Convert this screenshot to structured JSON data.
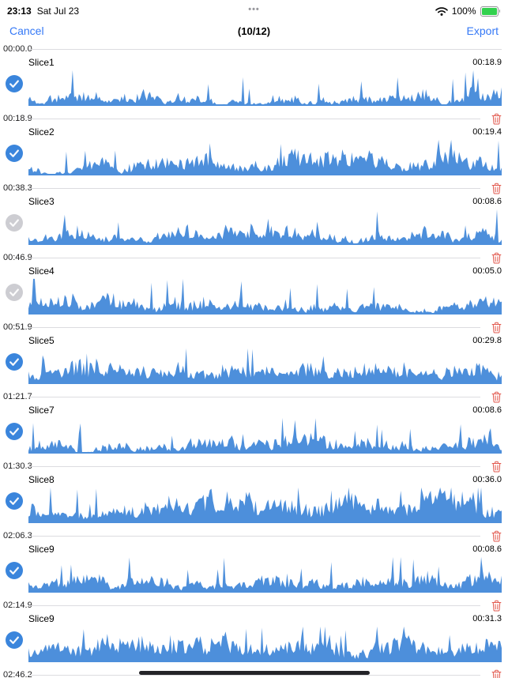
{
  "status_bar": {
    "time": "23:13",
    "date": "Sat Jul 23",
    "center": "•••",
    "battery_percent": "100%"
  },
  "nav": {
    "cancel_label": "Cancel",
    "title": "(10/12)",
    "export_label": "Export"
  },
  "colors": {
    "accent": "#3478F6",
    "waveform": "#4D8FDB",
    "trash": "#E2574C",
    "checkbox_checked": "#3A85DC",
    "checkbox_unchecked": "#CDCDD2",
    "battery_green": "#32D14E"
  },
  "slices": [
    {
      "start": "00:00.0",
      "name": "Slice1",
      "duration": "00:18.9",
      "checked": true,
      "seed": 11,
      "amp": 0.32
    },
    {
      "start": "00:18.9",
      "name": "Slice2",
      "duration": "00:19.4",
      "checked": true,
      "seed": 22,
      "amp": 0.42
    },
    {
      "start": "00:38.3",
      "name": "Slice3",
      "duration": "00:08.6",
      "checked": false,
      "seed": 33,
      "amp": 0.32
    },
    {
      "start": "00:46.9",
      "name": "Slice4",
      "duration": "00:05.0",
      "checked": false,
      "seed": 44,
      "amp": 0.42
    },
    {
      "start": "00:51.9",
      "name": "Slice5",
      "duration": "00:29.8",
      "checked": true,
      "seed": 55,
      "amp": 0.48
    },
    {
      "start": "01:21.7",
      "name": "Slice7",
      "duration": "00:08.6",
      "checked": true,
      "seed": 66,
      "amp": 0.38
    },
    {
      "start": "01:30.3",
      "name": "Slice8",
      "duration": "00:36.0",
      "checked": true,
      "seed": 77,
      "amp": 0.68
    },
    {
      "start": "02:06.3",
      "name": "Slice9",
      "duration": "00:08.6",
      "checked": true,
      "seed": 88,
      "amp": 0.38
    },
    {
      "start": "02:14.9",
      "name": "Slice9",
      "duration": "00:31.3",
      "checked": true,
      "seed": 99,
      "amp": 0.6
    }
  ],
  "end_time": "02:46.2"
}
